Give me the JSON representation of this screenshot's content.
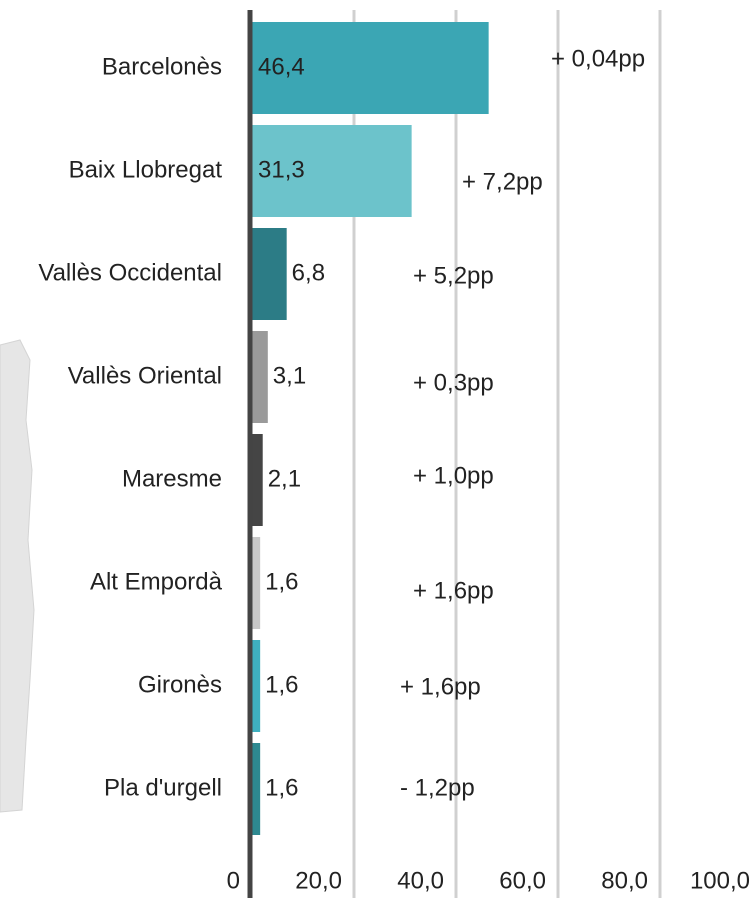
{
  "chart_data": {
    "type": "bar",
    "orientation": "horizontal",
    "categories": [
      "Barcelonès",
      "Baix Llobregat",
      "Vallès Occidental",
      "Vallès Oriental",
      "Maresme",
      "Alt Empordà",
      "Gironès",
      "Pla d'urgell"
    ],
    "values": [
      46.4,
      31.3,
      6.8,
      3.1,
      2.1,
      1.6,
      1.6,
      1.6
    ],
    "value_labels": [
      "46,4",
      "31,3",
      "6,8",
      "3,1",
      "2,1",
      "1,6",
      "1,6",
      "1,6"
    ],
    "colors": [
      "#3ba6b4",
      "#6cc3cb",
      "#2c7c86",
      "#9a9a9a",
      "#454545",
      "#c8c8c8",
      "#3fb0bf",
      "#2e8990"
    ],
    "annotations": [
      "+ 0,04pp",
      "+ 7,2pp",
      "+ 5,2pp",
      "+ 0,3pp",
      "+ 1,0pp",
      "+ 1,6pp",
      "+ 1,6pp",
      "- 1,2pp"
    ],
    "annotation_colors": [
      "#22bb22",
      "#22bb22",
      "#22bb22",
      "#22bb22",
      "#22bb22",
      "#22bb22",
      "#22bb22",
      "#e8192c"
    ],
    "xlim": [
      0,
      100
    ],
    "xticks": [
      0,
      {
        "value": 20,
        "label": "20,0"
      },
      {
        "value": 40,
        "label": "40,0"
      },
      {
        "value": 60,
        "label": "60,0"
      },
      {
        "value": 80,
        "label": "80,0"
      },
      {
        "value": 100,
        "label": "100,0"
      }
    ],
    "grid": true
  }
}
